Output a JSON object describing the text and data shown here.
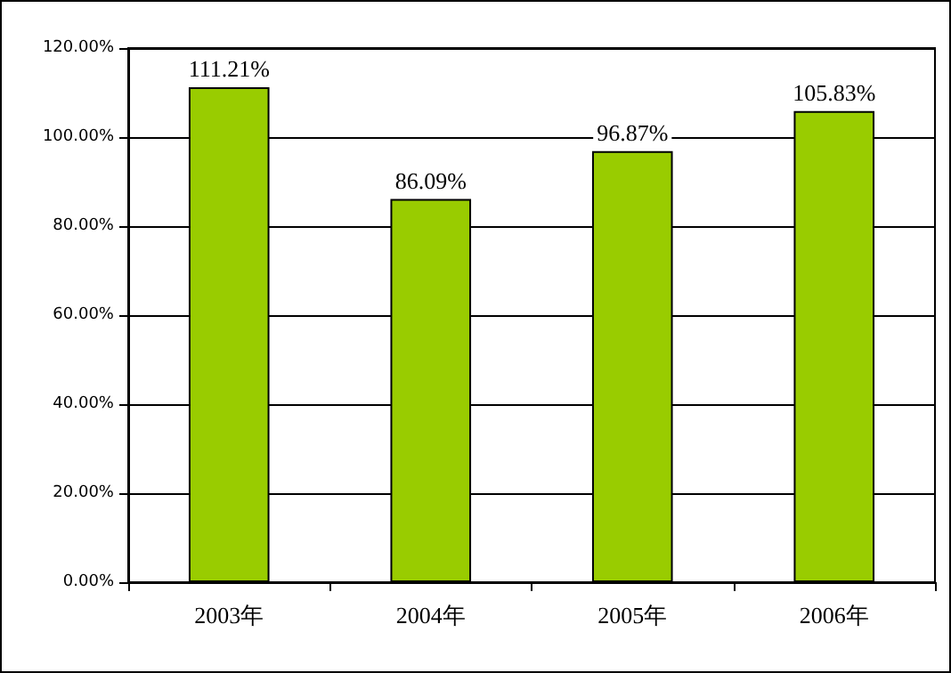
{
  "chart_data": {
    "type": "bar",
    "categories": [
      "2003年",
      "2004年",
      "2005年",
      "2006年"
    ],
    "values": [
      111.21,
      86.09,
      96.87,
      105.83
    ],
    "value_labels": [
      "111.21%",
      "86.09%",
      "96.87%",
      "105.83%"
    ],
    "color": "#99cc00",
    "ylim": [
      0,
      120
    ],
    "yticks": [
      {
        "value": 0,
        "label": "0.00%"
      },
      {
        "value": 20,
        "label": "20.00%"
      },
      {
        "value": 40,
        "label": "40.00%"
      },
      {
        "value": 60,
        "label": "60.00%"
      },
      {
        "value": 80,
        "label": "80.00%"
      },
      {
        "value": 100,
        "label": "100.00%"
      },
      {
        "value": 120,
        "label": "120.00%"
      }
    ],
    "grid": "y"
  }
}
